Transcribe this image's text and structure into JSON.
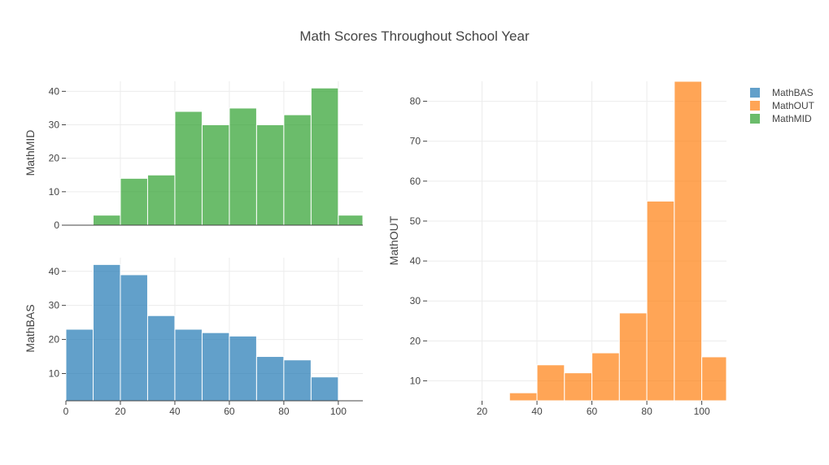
{
  "chart_data": {
    "type": "bar",
    "title": "Math Scores Throughout School Year",
    "legend": {
      "placement": "top-right",
      "entries": [
        {
          "name": "MathBAS",
          "color": "#1f77b4"
        },
        {
          "name": "MathOUT",
          "color": "#ff7f0e"
        },
        {
          "name": "MathMID",
          "color": "#2ca02c"
        }
      ]
    },
    "panels": [
      {
        "id": "mid",
        "ylabel": "MathMID",
        "color": "#2ca02c",
        "xlim": [
          0,
          109
        ],
        "ylim": [
          0,
          43
        ],
        "yticks": [
          0,
          10,
          20,
          30,
          40
        ],
        "xticks": [],
        "bins": [
          {
            "x0": 10,
            "x1": 20,
            "y": 3
          },
          {
            "x0": 20,
            "x1": 30,
            "y": 14
          },
          {
            "x0": 30,
            "x1": 40,
            "y": 15
          },
          {
            "x0": 40,
            "x1": 50,
            "y": 34
          },
          {
            "x0": 50,
            "x1": 60,
            "y": 30
          },
          {
            "x0": 60,
            "x1": 70,
            "y": 35
          },
          {
            "x0": 70,
            "x1": 80,
            "y": 30
          },
          {
            "x0": 80,
            "x1": 90,
            "y": 33
          },
          {
            "x0": 90,
            "x1": 100,
            "y": 41
          },
          {
            "x0": 100,
            "x1": 110,
            "y": 3
          }
        ]
      },
      {
        "id": "bas",
        "ylabel": "MathBAS",
        "color": "#1f77b4",
        "xlim": [
          0,
          109
        ],
        "ylim": [
          2,
          44
        ],
        "yticks": [
          10,
          20,
          30,
          40
        ],
        "xticks": [
          0,
          20,
          40,
          60,
          80,
          100
        ],
        "bins": [
          {
            "x0": 0,
            "x1": 10,
            "y": 23
          },
          {
            "x0": 10,
            "x1": 20,
            "y": 42
          },
          {
            "x0": 20,
            "x1": 30,
            "y": 39
          },
          {
            "x0": 30,
            "x1": 40,
            "y": 27
          },
          {
            "x0": 40,
            "x1": 50,
            "y": 23
          },
          {
            "x0": 50,
            "x1": 60,
            "y": 22
          },
          {
            "x0": 60,
            "x1": 70,
            "y": 21
          },
          {
            "x0": 70,
            "x1": 80,
            "y": 15
          },
          {
            "x0": 80,
            "x1": 90,
            "y": 14
          },
          {
            "x0": 90,
            "x1": 100,
            "y": 9
          }
        ]
      },
      {
        "id": "out",
        "ylabel": "MathOUT",
        "color": "#ff7f0e",
        "xlim": [
          0,
          109
        ],
        "ylim": [
          5,
          85
        ],
        "yticks": [
          10,
          20,
          30,
          40,
          50,
          60,
          70,
          80
        ],
        "xticks": [
          20,
          40,
          60,
          80,
          100
        ],
        "bins": [
          {
            "x0": 30,
            "x1": 40,
            "y": 7
          },
          {
            "x0": 40,
            "x1": 50,
            "y": 14
          },
          {
            "x0": 50,
            "x1": 60,
            "y": 12
          },
          {
            "x0": 60,
            "x1": 70,
            "y": 17
          },
          {
            "x0": 70,
            "x1": 80,
            "y": 27
          },
          {
            "x0": 80,
            "x1": 90,
            "y": 55
          },
          {
            "x0": 90,
            "x1": 100,
            "y": 85
          },
          {
            "x0": 100,
            "x1": 110,
            "y": 16
          }
        ]
      }
    ]
  }
}
